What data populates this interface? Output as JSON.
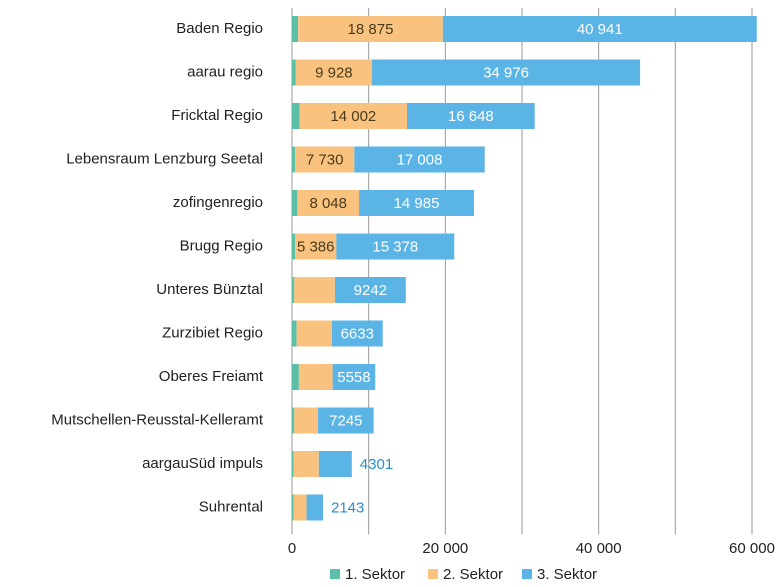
{
  "chart_data": {
    "type": "stacked_barh",
    "categories": [
      "Baden Regio",
      "aarau regio",
      "Fricktal Regio",
      "Lebensraum Lenzburg Seetal",
      "zofingenregio",
      "Brugg Regio",
      "Unteres Bünztal",
      "Zurzibiet Regio",
      "Oberes Freiamt",
      "Mutschellen-Reusstal-Kelleramt",
      "aargauSüd impuls",
      "Suhrental"
    ],
    "series": [
      {
        "name": "1. Sektor",
        "color": "#5cc0a8",
        "values": [
          800,
          500,
          1000,
          400,
          700,
          400,
          300,
          600,
          900,
          300,
          200,
          200
        ]
      },
      {
        "name": "2. Sektor",
        "color": "#f9c37f",
        "values": [
          18875,
          9928,
          14002,
          7730,
          8048,
          5386,
          5300,
          4600,
          4400,
          3100,
          3300,
          1700
        ],
        "value_labels": [
          "18 875",
          "9 928",
          "14 002",
          "7 730",
          "8 048",
          "5 386",
          null,
          null,
          null,
          null,
          null,
          null
        ]
      },
      {
        "name": "3. Sektor",
        "color": "#5ab4e5",
        "values": [
          40941,
          34976,
          16648,
          17008,
          14985,
          15378,
          9242,
          6633,
          5558,
          7245,
          4301,
          2143
        ],
        "value_labels": [
          "40 941",
          "34 976",
          "16 648",
          "17 008",
          "14 985",
          "15 378",
          "9242",
          "6633",
          "5558",
          "7245",
          "4301",
          "2143"
        ]
      }
    ],
    "xlim": [
      0,
      60000
    ],
    "xticks": [
      0,
      {
        "value": 20000,
        "label": "20 000"
      },
      {
        "value": 40000,
        "label": "40 000"
      },
      {
        "value": 60000,
        "label": "60 000"
      }
    ],
    "xgrid": [
      10000,
      20000,
      30000,
      40000,
      50000,
      60000
    ],
    "legend": "bottom"
  }
}
